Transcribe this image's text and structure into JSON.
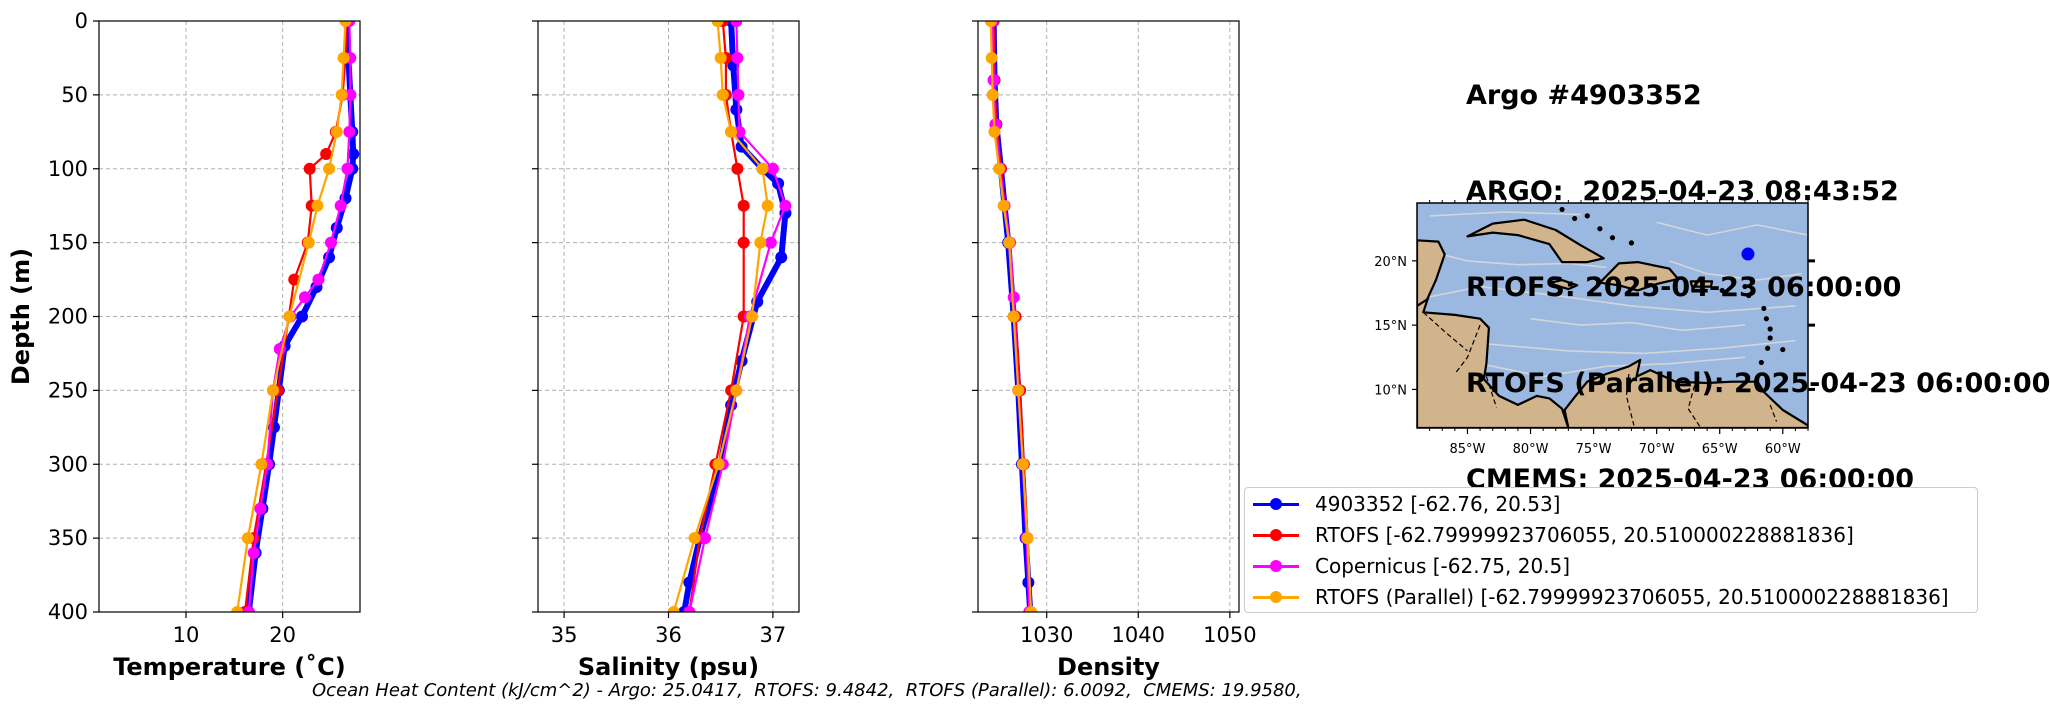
{
  "info": {
    "lines": [
      "Argo #4903352",
      "ARGO:  2025-04-23 08:43:52",
      "RTOFS: 2025-04-23 06:00:00",
      "RTOFS (Parallel): 2025-04-23 06:00:00",
      "CMEMS: 2025-04-23 06:00:00"
    ]
  },
  "footer": "Ocean Heat Content (kJ/cm^2) - Argo: 25.0417,  RTOFS: 9.4842,  RTOFS (Parallel): 6.0092,  CMEMS: 19.9580,",
  "colors": {
    "argo": "#0000ff",
    "rtofs": "#ff0000",
    "copernicus": "#ff00ff",
    "rtofs_parallel": "#ffa500",
    "ocean": "#9bb8e0",
    "land": "#d2b48c"
  },
  "legend": [
    {
      "label": "4903352 [-62.76, 20.53]",
      "color": "#0000ff"
    },
    {
      "label": "RTOFS [-62.79999923706055, 20.510000228881836]",
      "color": "#ff0000"
    },
    {
      "label": "Copernicus [-62.75, 20.5]",
      "color": "#ff00ff"
    },
    {
      "label": "RTOFS (Parallel) [-62.79999923706055, 20.510000228881836]",
      "color": "#ffa500"
    }
  ],
  "map": {
    "lon_ticks": [
      "85°W",
      "80°W",
      "75°W",
      "70°W",
      "65°W",
      "60°W"
    ],
    "lat_ticks": [
      "20°N",
      "15°N",
      "10°N"
    ],
    "lon_range": [
      -89,
      -58
    ],
    "lat_range": [
      7,
      24.5
    ],
    "float_position": {
      "lon": -62.76,
      "lat": 20.53
    }
  },
  "chart_data": [
    {
      "type": "line",
      "xlabel": "Temperature (˚C)",
      "ylabel": "Depth (m)",
      "xlim": [
        1,
        28
      ],
      "ylim": [
        400,
        0
      ],
      "xticks": [
        10,
        20
      ],
      "yticks": [
        0,
        50,
        100,
        150,
        200,
        250,
        300,
        350,
        400
      ],
      "grid": true,
      "series": [
        {
          "name": "4903352",
          "color": "#0000ff",
          "x": [
            26.6,
            26.8,
            27.0,
            27.2,
            27.3,
            27.2,
            26.5,
            25.6,
            24.8,
            23.5,
            22.0,
            20.2,
            19.6,
            19.1,
            18.6,
            17.9,
            17.2,
            16.5
          ],
          "y": [
            0,
            25,
            50,
            75,
            90,
            100,
            120,
            140,
            160,
            180,
            200,
            220,
            250,
            275,
            300,
            330,
            360,
            400
          ]
        },
        {
          "name": "RTOFS",
          "color": "#ff0000",
          "x": [
            26.6,
            26.5,
            26.2,
            25.5,
            24.5,
            22.8,
            23.0,
            22.6,
            21.2,
            19.5,
            18.3,
            17.0,
            16.1
          ],
          "y": [
            0,
            25,
            50,
            75,
            90,
            100,
            125,
            150,
            175,
            250,
            300,
            350,
            400
          ]
        },
        {
          "name": "Copernicus",
          "color": "#ff00ff",
          "x": [
            26.9,
            27.0,
            27.0,
            26.9,
            26.7,
            26.0,
            25.0,
            23.7,
            22.3,
            20.8,
            19.7,
            19.0,
            18.4,
            17.7,
            17.0,
            16.5
          ],
          "y": [
            0,
            25,
            50,
            75,
            100,
            125,
            150,
            175,
            187,
            200,
            222,
            250,
            300,
            330,
            360,
            400
          ]
        },
        {
          "name": "RTOFS (Parallel)",
          "color": "#ffa500",
          "x": [
            26.5,
            26.3,
            26.1,
            25.6,
            24.8,
            23.6,
            22.7,
            20.7,
            19.0,
            17.8,
            16.4,
            15.3
          ],
          "y": [
            0,
            25,
            50,
            75,
            100,
            125,
            150,
            200,
            250,
            300,
            350,
            400
          ]
        }
      ]
    },
    {
      "type": "line",
      "xlabel": "Salinity (psu)",
      "ylabel": "",
      "xlim": [
        34.75,
        37.25
      ],
      "ylim": [
        400,
        0
      ],
      "xticks": [
        35,
        36,
        37
      ],
      "yticks": [
        0,
        50,
        100,
        150,
        200,
        250,
        300,
        350,
        400
      ],
      "grid": true,
      "series": [
        {
          "name": "4903352",
          "color": "#0000ff",
          "x": [
            36.6,
            36.62,
            36.65,
            36.7,
            36.9,
            37.05,
            37.12,
            37.08,
            36.85,
            36.7,
            36.6,
            36.5,
            36.3,
            36.2,
            36.15
          ],
          "y": [
            0,
            30,
            60,
            85,
            100,
            110,
            130,
            160,
            190,
            230,
            260,
            300,
            350,
            380,
            400
          ]
        },
        {
          "name": "RTOFS",
          "color": "#ff0000",
          "x": [
            36.52,
            36.55,
            36.55,
            36.6,
            36.66,
            36.72,
            36.72,
            36.72,
            36.6,
            36.45,
            36.3,
            36.2
          ],
          "y": [
            0,
            25,
            50,
            75,
            100,
            125,
            150,
            200,
            250,
            300,
            350,
            400
          ]
        },
        {
          "name": "Copernicus",
          "color": "#ff00ff",
          "x": [
            36.65,
            36.66,
            36.67,
            36.68,
            37.0,
            37.12,
            36.98,
            36.78,
            36.65,
            36.52,
            36.35,
            36.2
          ],
          "y": [
            0,
            25,
            50,
            75,
            100,
            125,
            150,
            200,
            250,
            300,
            350,
            400
          ]
        },
        {
          "name": "RTOFS (Parallel)",
          "color": "#ffa500",
          "x": [
            36.47,
            36.5,
            36.52,
            36.6,
            36.9,
            36.95,
            36.88,
            36.8,
            36.65,
            36.48,
            36.25,
            36.05
          ],
          "y": [
            0,
            25,
            50,
            75,
            100,
            125,
            150,
            200,
            250,
            300,
            350,
            400
          ]
        }
      ]
    },
    {
      "type": "line",
      "xlabel": "Density",
      "ylabel": "",
      "xlim": [
        1022.5,
        1051
      ],
      "ylim": [
        400,
        0
      ],
      "xticks": [
        1030,
        1040,
        1050
      ],
      "yticks": [
        0,
        50,
        100,
        150,
        200,
        250,
        300,
        350,
        400
      ],
      "grid": true,
      "series": [
        {
          "name": "4903352",
          "color": "#0000ff",
          "x": [
            1024.2,
            1024.3,
            1024.5,
            1025.0,
            1025.8,
            1026.4,
            1026.9,
            1027.3,
            1027.7,
            1028.0,
            1028.2
          ],
          "y": [
            0,
            40,
            70,
            100,
            150,
            200,
            250,
            300,
            350,
            380,
            400
          ]
        },
        {
          "name": "RTOFS",
          "color": "#ff0000",
          "x": [
            1024.2,
            1024.3,
            1024.5,
            1025.0,
            1025.9,
            1026.6,
            1027.1,
            1027.5,
            1027.9,
            1028.2
          ],
          "y": [
            0,
            40,
            70,
            100,
            150,
            200,
            250,
            300,
            350,
            400
          ]
        },
        {
          "name": "Copernicus",
          "color": "#ff00ff",
          "x": [
            1024.1,
            1024.2,
            1024.4,
            1024.9,
            1025.4,
            1026.0,
            1026.4,
            1026.9,
            1027.4,
            1027.8,
            1028.1
          ],
          "y": [
            0,
            40,
            70,
            100,
            125,
            150,
            187,
            250,
            300,
            350,
            400
          ]
        },
        {
          "name": "RTOFS (Parallel)",
          "color": "#ffa500",
          "x": [
            1023.9,
            1024.0,
            1024.1,
            1024.3,
            1024.8,
            1025.3,
            1025.9,
            1026.4,
            1026.9,
            1027.4,
            1027.9,
            1028.3
          ],
          "y": [
            0,
            25,
            50,
            75,
            100,
            125,
            150,
            200,
            250,
            300,
            350,
            400
          ]
        }
      ]
    }
  ]
}
